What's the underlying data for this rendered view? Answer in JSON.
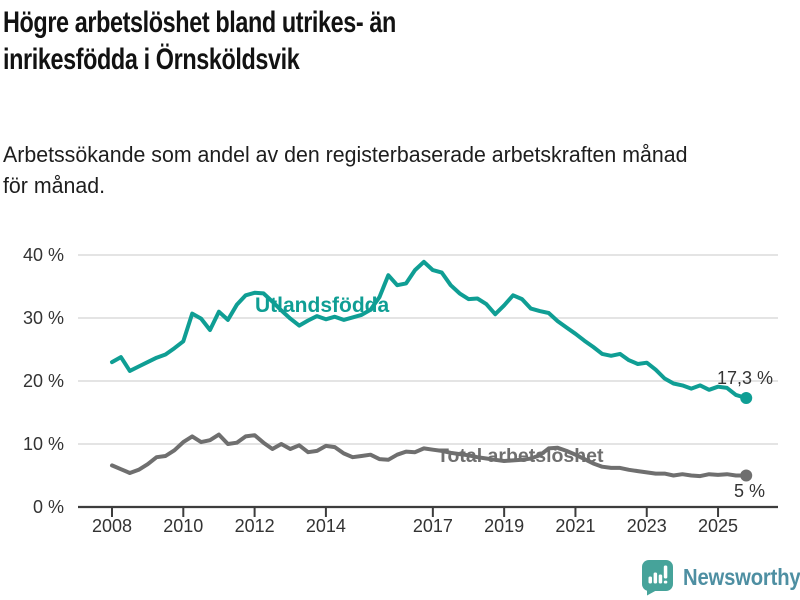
{
  "header": {
    "title_line1": "Högre arbetslöshet bland utrikes- än",
    "title_line2": "inrikesfödda i Örnsköldsvik",
    "subtitle_line1": "Arbetssökande som andel av den registerbaserade arbetskraften månad",
    "subtitle_line2": "för månad."
  },
  "chart_data": {
    "type": "line",
    "title": "",
    "xlabel": "",
    "ylabel": "",
    "grid": true,
    "x_axis": {
      "ticks": [
        2008,
        2010,
        2012,
        2014,
        2017,
        2019,
        2021,
        2023,
        2025
      ],
      "range": [
        2007.0,
        2026.7
      ]
    },
    "y_axis": {
      "ticks": [
        0,
        10,
        20,
        30,
        40
      ],
      "suffix": " %",
      "range": [
        0,
        42
      ]
    },
    "colors": {
      "grid": "#e0e0e0",
      "axis": "#3d3d3d",
      "tick_text": "#333333",
      "value_label_text": "#333333"
    },
    "series": [
      {
        "name": "Utlandsfödda",
        "color": "#0f9e94",
        "end_label": "17,3 %",
        "points": [
          [
            2008.0,
            23.0
          ],
          [
            2008.25,
            23.8
          ],
          [
            2008.5,
            21.6
          ],
          [
            2008.75,
            22.3
          ],
          [
            2009.0,
            23.0
          ],
          [
            2009.25,
            23.7
          ],
          [
            2009.5,
            24.2
          ],
          [
            2009.75,
            25.2
          ],
          [
            2010.0,
            26.3
          ],
          [
            2010.25,
            30.7
          ],
          [
            2010.5,
            29.9
          ],
          [
            2010.75,
            28.1
          ],
          [
            2011.0,
            31.0
          ],
          [
            2011.25,
            29.7
          ],
          [
            2011.5,
            32.1
          ],
          [
            2011.75,
            33.6
          ],
          [
            2012.0,
            34.0
          ],
          [
            2012.25,
            33.9
          ],
          [
            2012.5,
            32.6
          ],
          [
            2012.75,
            31.2
          ],
          [
            2013.0,
            29.9
          ],
          [
            2013.25,
            28.8
          ],
          [
            2013.5,
            29.6
          ],
          [
            2013.75,
            30.3
          ],
          [
            2014.0,
            29.8
          ],
          [
            2014.25,
            30.2
          ],
          [
            2014.5,
            29.7
          ],
          [
            2014.75,
            30.1
          ],
          [
            2015.0,
            30.5
          ],
          [
            2015.25,
            31.3
          ],
          [
            2015.5,
            33.3
          ],
          [
            2015.75,
            36.8
          ],
          [
            2016.0,
            35.2
          ],
          [
            2016.25,
            35.5
          ],
          [
            2016.5,
            37.6
          ],
          [
            2016.75,
            38.9
          ],
          [
            2017.0,
            37.6
          ],
          [
            2017.25,
            37.2
          ],
          [
            2017.5,
            35.2
          ],
          [
            2017.75,
            33.9
          ],
          [
            2018.0,
            33.0
          ],
          [
            2018.25,
            33.1
          ],
          [
            2018.5,
            32.2
          ],
          [
            2018.75,
            30.6
          ],
          [
            2019.0,
            32.0
          ],
          [
            2019.25,
            33.6
          ],
          [
            2019.5,
            33.0
          ],
          [
            2019.75,
            31.5
          ],
          [
            2020.0,
            31.1
          ],
          [
            2020.25,
            30.8
          ],
          [
            2020.5,
            29.5
          ],
          [
            2020.75,
            28.5
          ],
          [
            2021.0,
            27.5
          ],
          [
            2021.25,
            26.4
          ],
          [
            2021.5,
            25.4
          ],
          [
            2021.75,
            24.3
          ],
          [
            2022.0,
            24.0
          ],
          [
            2022.25,
            24.3
          ],
          [
            2022.5,
            23.3
          ],
          [
            2022.75,
            22.7
          ],
          [
            2023.0,
            22.9
          ],
          [
            2023.25,
            21.8
          ],
          [
            2023.5,
            20.4
          ],
          [
            2023.75,
            19.6
          ],
          [
            2024.0,
            19.3
          ],
          [
            2024.25,
            18.8
          ],
          [
            2024.5,
            19.3
          ],
          [
            2024.75,
            18.6
          ],
          [
            2025.0,
            19.1
          ],
          [
            2025.25,
            18.9
          ],
          [
            2025.5,
            17.8
          ],
          [
            2025.79,
            17.3
          ]
        ]
      },
      {
        "name": "Total arbetslöshet",
        "color": "#6f6f6f",
        "end_label": "5 %",
        "points": [
          [
            2008.0,
            6.6
          ],
          [
            2008.25,
            6.0
          ],
          [
            2008.5,
            5.4
          ],
          [
            2008.75,
            5.9
          ],
          [
            2009.0,
            6.8
          ],
          [
            2009.25,
            7.9
          ],
          [
            2009.5,
            8.1
          ],
          [
            2009.75,
            9.0
          ],
          [
            2010.0,
            10.3
          ],
          [
            2010.25,
            11.2
          ],
          [
            2010.5,
            10.3
          ],
          [
            2010.75,
            10.6
          ],
          [
            2011.0,
            11.5
          ],
          [
            2011.25,
            10.0
          ],
          [
            2011.5,
            10.2
          ],
          [
            2011.75,
            11.2
          ],
          [
            2012.0,
            11.4
          ],
          [
            2012.25,
            10.2
          ],
          [
            2012.5,
            9.2
          ],
          [
            2012.75,
            10.0
          ],
          [
            2013.0,
            9.2
          ],
          [
            2013.25,
            9.8
          ],
          [
            2013.5,
            8.7
          ],
          [
            2013.75,
            8.9
          ],
          [
            2014.0,
            9.7
          ],
          [
            2014.25,
            9.5
          ],
          [
            2014.5,
            8.5
          ],
          [
            2014.75,
            7.9
          ],
          [
            2015.0,
            8.1
          ],
          [
            2015.25,
            8.3
          ],
          [
            2015.5,
            7.6
          ],
          [
            2015.75,
            7.5
          ],
          [
            2016.0,
            8.3
          ],
          [
            2016.25,
            8.8
          ],
          [
            2016.5,
            8.7
          ],
          [
            2016.75,
            9.3
          ],
          [
            2017.0,
            9.1
          ],
          [
            2017.25,
            8.9
          ],
          [
            2017.5,
            8.6
          ],
          [
            2017.75,
            8.4
          ],
          [
            2018.0,
            8.2
          ],
          [
            2018.25,
            7.9
          ],
          [
            2018.5,
            7.7
          ],
          [
            2018.75,
            7.5
          ],
          [
            2019.0,
            7.3
          ],
          [
            2019.25,
            7.4
          ],
          [
            2019.5,
            7.5
          ],
          [
            2019.75,
            7.7
          ],
          [
            2020.0,
            8.2
          ],
          [
            2020.25,
            9.3
          ],
          [
            2020.5,
            9.4
          ],
          [
            2020.75,
            8.9
          ],
          [
            2021.0,
            8.3
          ],
          [
            2021.25,
            7.6
          ],
          [
            2021.5,
            6.9
          ],
          [
            2021.75,
            6.4
          ],
          [
            2022.0,
            6.2
          ],
          [
            2022.25,
            6.2
          ],
          [
            2022.5,
            5.9
          ],
          [
            2022.75,
            5.7
          ],
          [
            2023.0,
            5.5
          ],
          [
            2023.25,
            5.3
          ],
          [
            2023.5,
            5.3
          ],
          [
            2023.75,
            5.0
          ],
          [
            2024.0,
            5.2
          ],
          [
            2024.25,
            5.0
          ],
          [
            2024.5,
            4.9
          ],
          [
            2024.75,
            5.2
          ],
          [
            2025.0,
            5.1
          ],
          [
            2025.25,
            5.2
          ],
          [
            2025.5,
            5.0
          ],
          [
            2025.79,
            5.0
          ]
        ]
      }
    ],
    "legend_position": "labels-on-lines"
  },
  "logo": {
    "wordmark": "Newsworthy",
    "icon": "newsworthy-bars-speech-bubble-icon",
    "icon_color": "#46A39A",
    "icon_glyph_color": "#ffffff",
    "text_color": "#4E8FA2"
  }
}
